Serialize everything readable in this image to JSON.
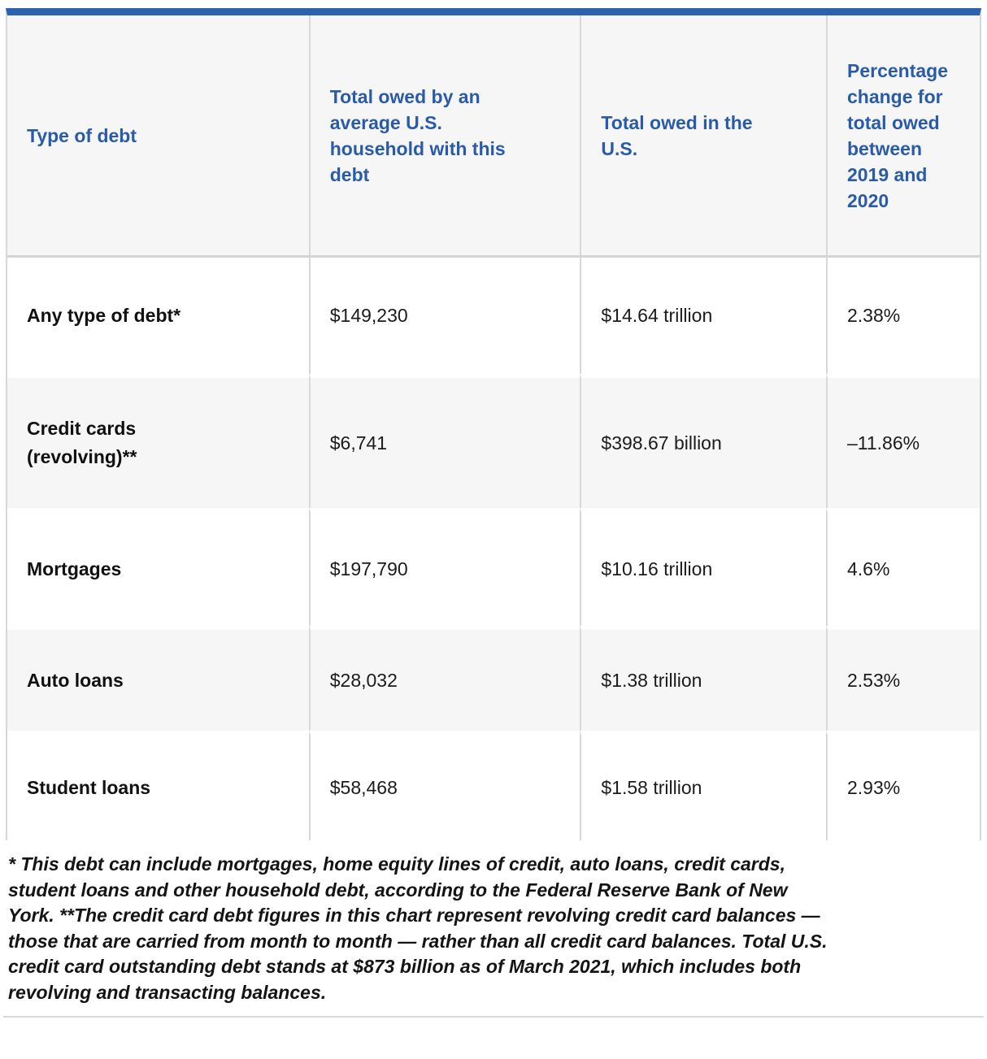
{
  "table": {
    "columns": {
      "type_of_debt": "Type of debt",
      "household_total": "Total owed by an average U.S. household with this debt",
      "us_total": "Total owed in the U.S.",
      "pct_change": "Percentage change for total owed between 2019 and 2020"
    },
    "rows": [
      {
        "label": "Any type of debt*",
        "household": "$149,230",
        "us_total": "$14.64 trillion",
        "pct_change": "2.38%"
      },
      {
        "label": "Credit cards (revolving)**",
        "household": "$6,741",
        "us_total": "$398.67 billion",
        "pct_change": "–11.86%"
      },
      {
        "label": "Mortgages",
        "household": "$197,790",
        "us_total": "$10.16 trillion",
        "pct_change": "4.6%"
      },
      {
        "label": "Auto loans",
        "household": "$28,032",
        "us_total": "$1.38 trillion",
        "pct_change": "2.53%"
      },
      {
        "label": "Student loans",
        "household": "$58,468",
        "us_total": "$1.58 trillion",
        "pct_change": "2.93%"
      }
    ]
  },
  "footnote": "* This debt can include mortgages, home equity lines of credit, auto loans, credit cards, student loans and other household debt, according to the Federal Reserve Bank of New York. **The credit card debt figures in this chart represent revolving credit card balances — those that are carried from month to month — rather than all credit card balances. Total U.S. credit card outstanding debt stands at $873 billion as of March 2021, which includes both revolving and transacting balances.",
  "colors": {
    "accent_blue_bar": "#2a62ae",
    "header_text_blue": "#2a5ba8",
    "alt_row_bg": "#f6f6f7",
    "divider_gray": "#d8d8da",
    "body_text": "#1b1b1b"
  },
  "chart_data": {
    "type": "table",
    "title": "",
    "columns": [
      "Type of debt",
      "Total owed by an average U.S. household with this debt",
      "Total owed in the U.S.",
      "Percentage change for total owed between 2019 and 2020"
    ],
    "rows": [
      [
        "Any type of debt*",
        "$149,230",
        "$14.64 trillion",
        "2.38%"
      ],
      [
        "Credit cards (revolving)**",
        "$6,741",
        "$398.67 billion",
        "–11.86%"
      ],
      [
        "Mortgages",
        "$197,790",
        "$10.16 trillion",
        "4.6%"
      ],
      [
        "Auto loans",
        "$28,032",
        "$1.38 trillion",
        "2.53%"
      ],
      [
        "Student loans",
        "$58,468",
        "$1.58 trillion",
        "2.93%"
      ]
    ],
    "notes": "Percentage change column compares total owed between 2019 and 2020; negative value for revolving credit cards."
  }
}
